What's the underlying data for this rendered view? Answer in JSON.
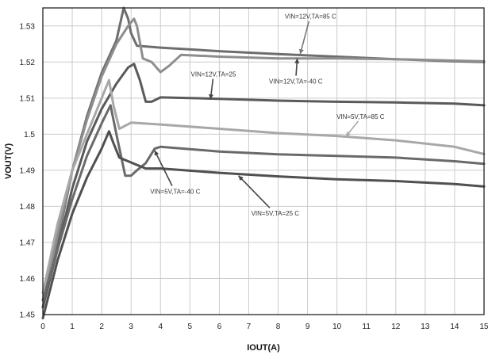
{
  "chart_data": {
    "type": "line",
    "xlabel": "IOUT(A)",
    "ylabel": "VOUT(V)",
    "xlim": [
      0,
      15
    ],
    "ylim": [
      1.45,
      1.535
    ],
    "x_ticks": [
      "0",
      "1",
      "2",
      "3",
      "4",
      "5",
      "6",
      "7",
      "8",
      "9",
      "10",
      "11",
      "12",
      "13",
      "14",
      "15"
    ],
    "y_ticks": [
      "1.45",
      "1.46",
      "1.47",
      "1.48",
      "1.49",
      "1.5",
      "1.51",
      "1.52",
      "1.53"
    ],
    "grid": true,
    "legend": "none",
    "series": [
      {
        "name": "VIN=12V,TA=85 C",
        "color": "#6e6e6e",
        "x": [
          0,
          0.5,
          1,
          1.5,
          2,
          2.5,
          2.75,
          2.9,
          3,
          3.2,
          4,
          6,
          8,
          10,
          12,
          14,
          15
        ],
        "y": [
          1.452,
          1.47,
          1.49,
          1.505,
          1.517,
          1.526,
          1.535,
          1.532,
          1.528,
          1.5245,
          1.524,
          1.523,
          1.5222,
          1.5215,
          1.5208,
          1.5202,
          1.52
        ]
      },
      {
        "name": "VIN=12V,TA=-40 C",
        "color": "#8e8e8e",
        "x": [
          0,
          0.5,
          1,
          1.5,
          2,
          2.5,
          2.9,
          3.1,
          3.2,
          3.4,
          3.7,
          4,
          4.3,
          4.7,
          6,
          8,
          10,
          12,
          14,
          15
        ],
        "y": [
          1.454,
          1.472,
          1.49,
          1.504,
          1.516,
          1.525,
          1.53,
          1.532,
          1.53,
          1.521,
          1.52,
          1.5172,
          1.519,
          1.522,
          1.5215,
          1.521,
          1.521,
          1.5208,
          1.5204,
          1.5202
        ]
      },
      {
        "name": "VIN=12V,TA=25",
        "color": "#5a5a5a",
        "x": [
          0,
          0.5,
          1,
          1.5,
          2,
          2.5,
          2.9,
          3.1,
          3.3,
          3.5,
          3.7,
          4,
          6,
          8,
          10,
          12,
          14,
          15
        ],
        "y": [
          1.452,
          1.468,
          1.485,
          1.498,
          1.507,
          1.514,
          1.5185,
          1.5195,
          1.515,
          1.509,
          1.509,
          1.5102,
          1.5098,
          1.5093,
          1.509,
          1.5088,
          1.5085,
          1.508
        ]
      },
      {
        "name": "VIN=5V,TA=85 C",
        "color": "#a8a8a8",
        "x": [
          0,
          0.5,
          1,
          1.5,
          2,
          2.25,
          2.4,
          2.6,
          3,
          4,
          6,
          8,
          10,
          12,
          14,
          15
        ],
        "y": [
          1.456,
          1.475,
          1.49,
          1.5,
          1.51,
          1.515,
          1.508,
          1.5015,
          1.5032,
          1.5027,
          1.5015,
          1.5003,
          1.4995,
          1.4983,
          1.4965,
          1.4945
        ]
      },
      {
        "name": "VIN=5V,TA=-40 C",
        "color": "#6a6a6a",
        "x": [
          0,
          0.5,
          1,
          1.5,
          2,
          2.3,
          2.5,
          2.8,
          3,
          3.2,
          3.5,
          3.8,
          4,
          6,
          8,
          10,
          12,
          14,
          15
        ],
        "y": [
          1.454,
          1.468,
          1.482,
          1.494,
          1.503,
          1.508,
          1.5,
          1.4885,
          1.4885,
          1.49,
          1.492,
          1.496,
          1.4965,
          1.4952,
          1.4944,
          1.494,
          1.4935,
          1.4925,
          1.4918
        ]
      },
      {
        "name": "VIN=5V,TA=25 C",
        "color": "#505050",
        "x": [
          0,
          0.5,
          1,
          1.5,
          2,
          2.25,
          2.4,
          2.6,
          2.9,
          3.2,
          3.5,
          4,
          6,
          8,
          10,
          12,
          14,
          15
        ],
        "y": [
          1.449,
          1.465,
          1.478,
          1.488,
          1.496,
          1.5008,
          1.4975,
          1.4935,
          1.4925,
          1.4915,
          1.4905,
          1.4905,
          1.4893,
          1.4883,
          1.4875,
          1.487,
          1.4862,
          1.4855
        ]
      }
    ],
    "annotations": [
      {
        "text": "VIN=12V,TA=85 C",
        "color": "#777777",
        "label_x": 9.1,
        "label_y": 1.532,
        "point_x": 8.75,
        "point_y": 1.5222
      },
      {
        "text": "VIN=12V,TA=25",
        "color": "#444444",
        "label_x": 5.8,
        "label_y": 1.516,
        "point_x": 5.7,
        "point_y": 1.5097
      },
      {
        "text": "VIN=12V,TA=-40 C",
        "color": "#444444",
        "label_x": 8.6,
        "label_y": 1.514,
        "point_x": 8.65,
        "point_y": 1.521
      },
      {
        "text": "VIN=5V,TA=85 C",
        "color": "#aaaaaa",
        "label_x": 10.8,
        "label_y": 1.5043,
        "point_x": 10.3,
        "point_y": 1.4993
      },
      {
        "text": "VIN=5V,TA=-40 C",
        "color": "#444444",
        "label_x": 4.5,
        "label_y": 1.4835,
        "point_x": 3.8,
        "point_y": 1.4955
      },
      {
        "text": "VIN=5V,TA=25 C",
        "color": "#444444",
        "label_x": 7.9,
        "label_y": 1.4774,
        "point_x": 6.65,
        "point_y": 1.4885
      }
    ]
  }
}
